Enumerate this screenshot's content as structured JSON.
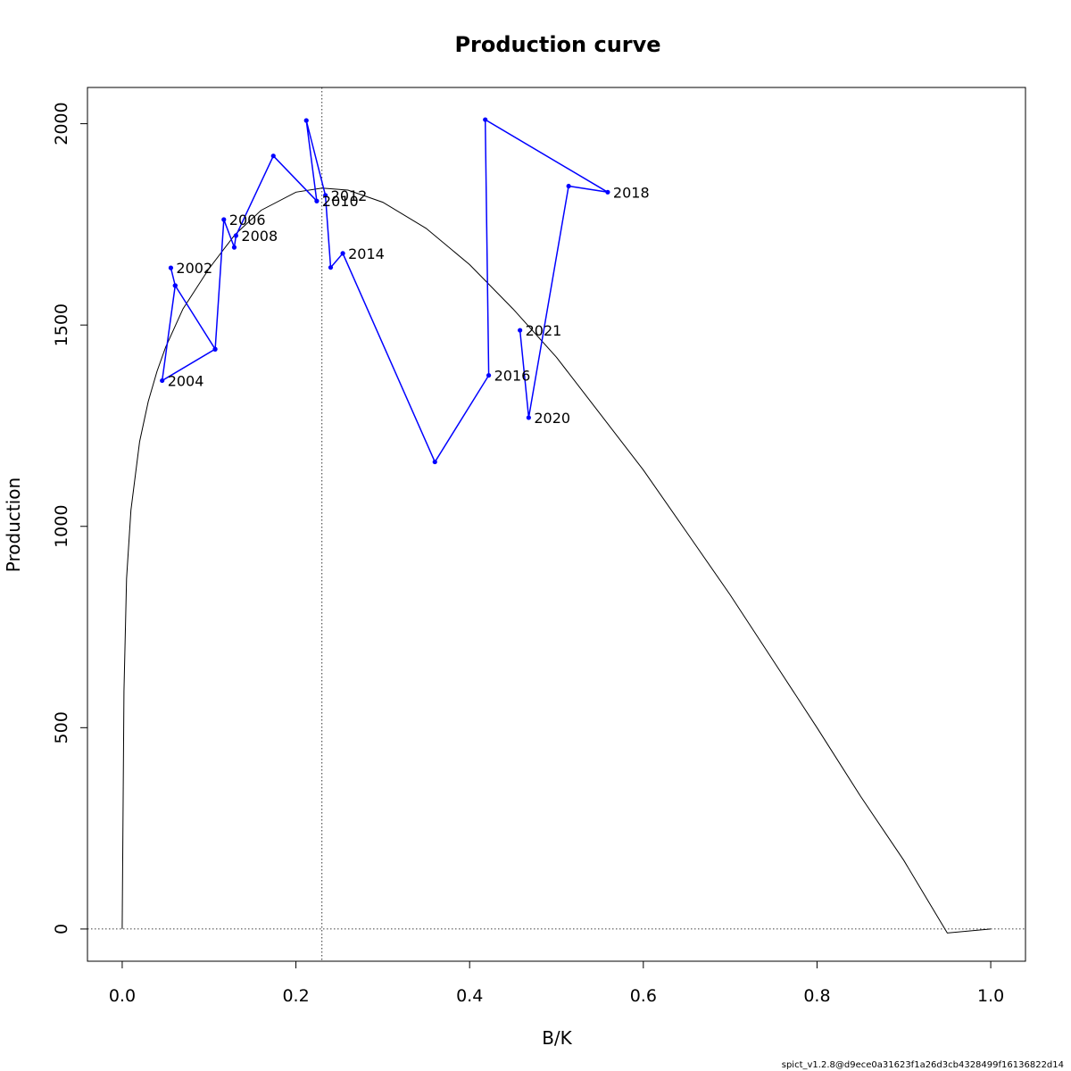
{
  "chart_data": {
    "type": "line",
    "title": "Production curve",
    "xlabel": "B/K",
    "ylabel": "Production",
    "xlim": [
      -0.04,
      1.04
    ],
    "ylim": [
      -80,
      2090
    ],
    "x_ticks": [
      {
        "value": 0.0,
        "label": "0.0"
      },
      {
        "value": 0.2,
        "label": "0.2"
      },
      {
        "value": 0.4,
        "label": "0.4"
      },
      {
        "value": 0.6,
        "label": "0.6"
      },
      {
        "value": 0.8,
        "label": "0.8"
      },
      {
        "value": 1.0,
        "label": "1.0"
      }
    ],
    "y_ticks": [
      {
        "value": 0,
        "label": "0"
      },
      {
        "value": 500,
        "label": "500"
      },
      {
        "value": 1000,
        "label": "1000"
      },
      {
        "value": 1500,
        "label": "1500"
      },
      {
        "value": 2000,
        "label": "2000"
      }
    ],
    "grid": false,
    "reference_lines": {
      "vertical_x": 0.23,
      "horizontal_y": 0,
      "style": "dotted"
    },
    "theoretical_curve": {
      "color": "#000000",
      "x": [
        0.0,
        0.002,
        0.005,
        0.01,
        0.02,
        0.03,
        0.04,
        0.05,
        0.07,
        0.1,
        0.13,
        0.16,
        0.2,
        0.23,
        0.26,
        0.3,
        0.35,
        0.4,
        0.45,
        0.5,
        0.55,
        0.6,
        0.65,
        0.7,
        0.75,
        0.8,
        0.85,
        0.9,
        0.95,
        1.0
      ],
      "y": [
        0,
        590,
        870,
        1040,
        1210,
        1310,
        1385,
        1445,
        1540,
        1640,
        1725,
        1785,
        1830,
        1840,
        1835,
        1805,
        1740,
        1650,
        1540,
        1420,
        1280,
        1140,
        985,
        830,
        665,
        500,
        330,
        170,
        -10,
        0
      ]
    },
    "series": [
      {
        "color": "#0000ff",
        "points": [
          {
            "x": 0.107,
            "y": 1440,
            "year": ""
          },
          {
            "x": 0.061,
            "y": 1598,
            "year": ""
          },
          {
            "x": 0.056,
            "y": 1642,
            "year": "2002"
          },
          {
            "x": 0.061,
            "y": 1598,
            "year": ""
          },
          {
            "x": 0.046,
            "y": 1362,
            "year": "2004"
          },
          {
            "x": 0.107,
            "y": 1440,
            "year": ""
          },
          {
            "x": 0.117,
            "y": 1762,
            "year": "2006"
          },
          {
            "x": 0.129,
            "y": 1693,
            "year": ""
          },
          {
            "x": 0.131,
            "y": 1722,
            "year": "2008"
          },
          {
            "x": 0.174,
            "y": 1920,
            "year": ""
          },
          {
            "x": 0.224,
            "y": 1808,
            "year": "2010"
          },
          {
            "x": 0.212,
            "y": 2008,
            "year": ""
          },
          {
            "x": 0.234,
            "y": 1822,
            "year": "2012"
          },
          {
            "x": 0.24,
            "y": 1643,
            "year": ""
          },
          {
            "x": 0.254,
            "y": 1678,
            "year": "2014"
          },
          {
            "x": 0.36,
            "y": 1160,
            "year": ""
          },
          {
            "x": 0.422,
            "y": 1375,
            "year": "2016"
          },
          {
            "x": 0.418,
            "y": 2010,
            "year": ""
          },
          {
            "x": 0.559,
            "y": 1830,
            "year": "2018"
          },
          {
            "x": 0.514,
            "y": 1845,
            "year": ""
          },
          {
            "x": 0.468,
            "y": 1270,
            "year": "2020"
          },
          {
            "x": 0.458,
            "y": 1487,
            "year": "2021"
          }
        ]
      }
    ],
    "footnote": "spict_v1.2.8@d9ece0a31623f1a26d3cb4328499f16136822d14"
  }
}
